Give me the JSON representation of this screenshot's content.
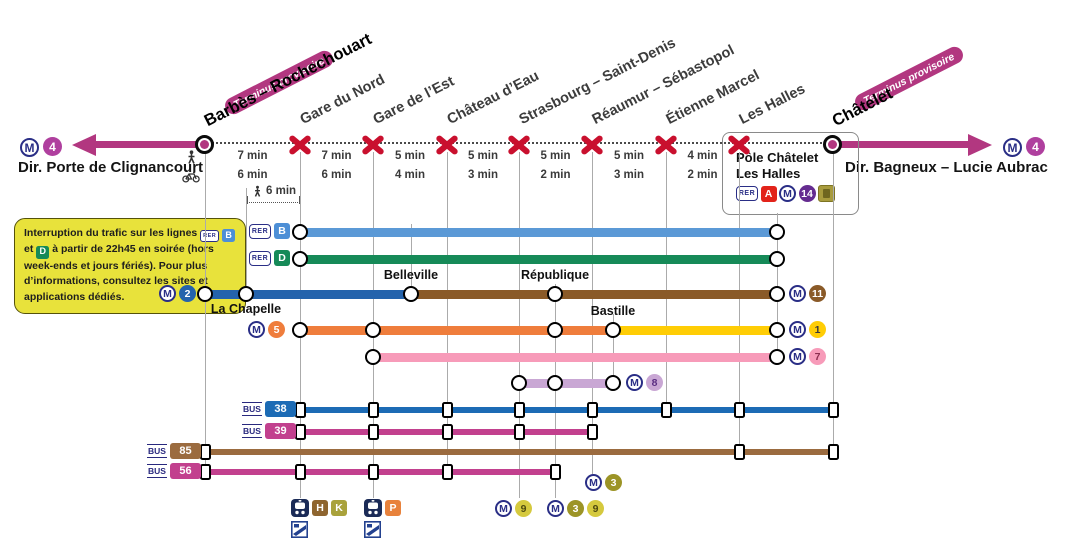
{
  "logos": {
    "metro": "M",
    "rer": "RER",
    "bus": "BUS"
  },
  "line4": {
    "number": "4",
    "terminus_note": "Terminus provisoire",
    "arrow_color": "#B23780",
    "badge_color": "#AF3F9E"
  },
  "directions": {
    "left": "Dir. Porte de Clignancourt",
    "right": "Dir. Bagneux – Lucie Aubrac"
  },
  "stations": [
    {
      "id": "barbes",
      "name": "Barbès – Rochechouart",
      "status": "terminus"
    },
    {
      "id": "garedunord",
      "name": "Gare du Nord",
      "status": "closed"
    },
    {
      "id": "garedelest",
      "name": "Gare de l’Est",
      "status": "closed"
    },
    {
      "id": "chateaudeau",
      "name": "Château d’Eau",
      "status": "closed"
    },
    {
      "id": "strasbourg",
      "name": "Strasbourg – Saint-Denis",
      "status": "closed"
    },
    {
      "id": "reaumur",
      "name": "Réaumur – Sébastopol",
      "status": "closed"
    },
    {
      "id": "etienne",
      "name": "Étienne Marcel",
      "status": "closed"
    },
    {
      "id": "leshalles",
      "name": "Les Halles",
      "status": "closed"
    },
    {
      "id": "chatelet",
      "name": "Châtelet",
      "status": "terminus"
    }
  ],
  "segment_times": {
    "walk": [
      "7 min",
      "7 min",
      "5 min",
      "5 min",
      "5 min",
      "5 min",
      "4 min"
    ],
    "bike": [
      "6 min",
      "6 min",
      "4 min",
      "3 min",
      "2 min",
      "3 min",
      "2 min"
    ]
  },
  "la_chapelle_walk": "6 min",
  "routes": [
    {
      "id": "rer-b",
      "left_icons": [
        {
          "t": "rerlogo"
        },
        {
          "t": "badge_sq",
          "label": "B",
          "bg": "#4D8FD6",
          "fg": "#ffffff"
        }
      ],
      "segments": [
        {
          "from": "garedunord",
          "to": "pole",
          "color": "#5B99D6"
        }
      ],
      "stops": [
        "garedunord",
        "pole"
      ],
      "stop_style": "circle"
    },
    {
      "id": "rer-d",
      "left_icons": [
        {
          "t": "rerlogo"
        },
        {
          "t": "badge_sq",
          "label": "D",
          "bg": "#168A58",
          "fg": "#ffffff"
        }
      ],
      "segments": [
        {
          "from": "garedunord",
          "to": "pole",
          "color": "#168A58"
        }
      ],
      "stops": [
        "garedunord",
        "pole"
      ],
      "stop_style": "circle"
    },
    {
      "id": "m2-m11",
      "left_icons": [
        {
          "t": "mlogo"
        },
        {
          "t": "badge_c",
          "label": "2",
          "bg": "#2463AC",
          "fg": "#ffffff"
        }
      ],
      "right_icons": [
        {
          "t": "mlogo"
        },
        {
          "t": "badge_c",
          "label": "11",
          "bg": "#8A5A28",
          "fg": "#ffffff"
        }
      ],
      "segments": [
        {
          "from": "barbes",
          "to": "belleville",
          "color": "#2463AC"
        },
        {
          "from": "belleville",
          "to": "pole",
          "color": "#8A5A28"
        }
      ],
      "stops": [
        "barbes",
        "lachapelle",
        "belleville",
        "republique",
        "pole"
      ],
      "labels": [
        {
          "text": "La Chapelle",
          "at": "lachapelle",
          "pos": "below"
        },
        {
          "text": "Belleville",
          "at": "belleville",
          "pos": "above"
        },
        {
          "text": "République",
          "at": "republique",
          "pos": "above"
        }
      ],
      "stop_style": "circle"
    },
    {
      "id": "m5-m1",
      "left_icons": [
        {
          "t": "mlogo"
        },
        {
          "t": "badge_c",
          "label": "5",
          "bg": "#EF7D3C",
          "fg": "#ffffff"
        }
      ],
      "right_icons": [
        {
          "t": "mlogo"
        },
        {
          "t": "badge_c",
          "label": "1",
          "bg": "#FFCD05",
          "fg": "#3a3a3a"
        }
      ],
      "segments": [
        {
          "from": "garedunord",
          "to": "bastille",
          "color": "#EF7D3C"
        },
        {
          "from": "bastille",
          "to": "pole",
          "color": "#FFCD05"
        }
      ],
      "stops": [
        "garedunord",
        "garedelest",
        "republique",
        "bastille",
        "pole"
      ],
      "labels": [
        {
          "text": "Bastille",
          "at": "bastille",
          "pos": "above"
        }
      ],
      "stop_style": "circle"
    },
    {
      "id": "m7",
      "right_icons": [
        {
          "t": "mlogo"
        },
        {
          "t": "badge_c",
          "label": "7",
          "bg": "#F79BB9",
          "fg": "#8C2F50"
        }
      ],
      "segments": [
        {
          "from": "garedelest",
          "to": "pole",
          "color": "#F79BB9"
        }
      ],
      "stops": [
        "garedelest",
        "pole"
      ],
      "stop_style": "circle"
    },
    {
      "id": "m8",
      "right_icons": [
        {
          "t": "mlogo"
        },
        {
          "t": "badge_c",
          "label": "8",
          "bg": "#C9A7D4",
          "fg": "#5A2D82"
        }
      ],
      "segments": [
        {
          "from": "strasbourg",
          "to": "bastille",
          "color": "#C9A7D4"
        }
      ],
      "stops": [
        "strasbourg",
        "republique",
        "bastille"
      ],
      "stop_style": "circle"
    },
    {
      "id": "bus-38",
      "left_icons": [
        {
          "t": "buslogo"
        },
        {
          "t": "badge_r",
          "label": "38",
          "bg": "#1C6BB5",
          "fg": "#ffffff"
        }
      ],
      "segments": [
        {
          "from": "garedunord",
          "to": "chatelet",
          "color": "#1C6BB5"
        }
      ],
      "stops": [
        "garedunord",
        "garedelest",
        "chateaudeau",
        "strasbourg",
        "reaumur",
        "etienne",
        "leshalles",
        "chatelet"
      ],
      "stop_style": "square"
    },
    {
      "id": "bus-39",
      "left_icons": [
        {
          "t": "buslogo"
        },
        {
          "t": "badge_r",
          "label": "39",
          "bg": "#C2408E",
          "fg": "#ffffff"
        }
      ],
      "segments": [
        {
          "from": "garedunord",
          "to": "reaumur",
          "color": "#C2408E"
        }
      ],
      "stops": [
        "garedunord",
        "garedelest",
        "chateaudeau",
        "strasbourg",
        "reaumur"
      ],
      "stop_style": "square"
    },
    {
      "id": "bus-85",
      "left_icons": [
        {
          "t": "buslogo"
        },
        {
          "t": "badge_r",
          "label": "85",
          "bg": "#9B6B3F",
          "fg": "#ffffff"
        }
      ],
      "segments": [
        {
          "from": "barbes",
          "to": "chatelet",
          "color": "#9B6B3F"
        }
      ],
      "stops": [
        "barbes",
        "leshalles",
        "chatelet"
      ],
      "stop_style": "square"
    },
    {
      "id": "bus-56",
      "left_icons": [
        {
          "t": "buslogo"
        },
        {
          "t": "badge_r",
          "label": "56",
          "bg": "#C2408E",
          "fg": "#ffffff"
        }
      ],
      "segments": [
        {
          "from": "barbes",
          "to": "republique",
          "color": "#C2408E"
        }
      ],
      "stops": [
        "barbes",
        "garedunord",
        "garedelest",
        "chateaudeau",
        "republique"
      ],
      "stop_style": "square"
    }
  ],
  "connections": [
    {
      "at": "garedunord",
      "icons": [
        {
          "t": "train"
        },
        {
          "t": "badge_sq",
          "label": "H",
          "bg": "#8E652F",
          "fg": "#ffffff"
        },
        {
          "t": "badge_sq",
          "label": "K",
          "bg": "#A9A23C",
          "fg": "#ffffff"
        }
      ],
      "station_icon": true
    },
    {
      "at": "garedelest",
      "icons": [
        {
          "t": "train"
        },
        {
          "t": "badge_sq",
          "label": "P",
          "bg": "#E8823C",
          "fg": "#ffffff"
        }
      ],
      "station_icon": true
    },
    {
      "at": "strasbourg",
      "icons": [
        {
          "t": "mlogo"
        },
        {
          "t": "badge_c",
          "label": "9",
          "bg": "#D5C93E",
          "fg": "#4e4a10"
        }
      ]
    },
    {
      "at": "republique",
      "icons": [
        {
          "t": "mlogo"
        },
        {
          "t": "badge_c",
          "label": "3",
          "bg": "#9C9426",
          "fg": "#ffffff"
        },
        {
          "t": "badge_c",
          "label": "9",
          "bg": "#D5C93E",
          "fg": "#4e4a10"
        }
      ]
    },
    {
      "at": "reaumur",
      "icons": [
        {
          "t": "mlogo"
        },
        {
          "t": "badge_c",
          "label": "3",
          "bg": "#9C9426",
          "fg": "#ffffff"
        }
      ]
    }
  ],
  "pole": {
    "title_line1": "Pôle Châtelet",
    "title_line2": "Les Halles",
    "icons": [
      {
        "t": "rerlogo"
      },
      {
        "t": "badge_sq",
        "label": "A",
        "bg": "#E2231A",
        "fg": "#ffffff"
      },
      {
        "t": "mlogo"
      },
      {
        "t": "badge_c",
        "label": "14",
        "bg": "#652C90",
        "fg": "#ffffff"
      },
      {
        "t": "gold"
      }
    ]
  },
  "note": {
    "text_before": "Interruption du trafic sur les lignes",
    "rer_b": "B",
    "conj": "et",
    "rer_d": "D",
    "text_after": "à partir de 22h45 en soirée (hors week-ends et jours fériés). Pour plus d’informations, consultez les sites et applications dédiés."
  }
}
